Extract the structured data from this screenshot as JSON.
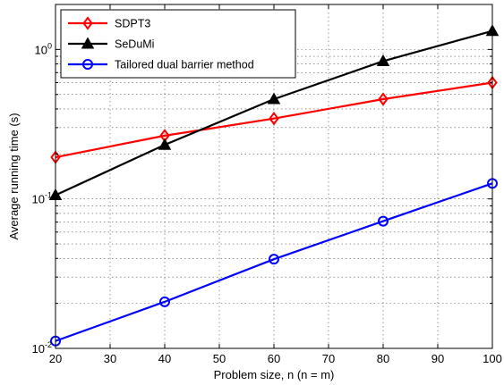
{
  "chart_data": {
    "type": "line",
    "title": "",
    "xlabel": "Problem size, n (n = m)",
    "ylabel": "Average running time (s)",
    "xlim": [
      20,
      100
    ],
    "ylim": [
      0.01,
      2
    ],
    "yscale": "log",
    "grid": true,
    "legend_position": "top-left",
    "x": [
      20,
      40,
      60,
      80,
      100
    ],
    "x_ticks": [
      "20",
      "30",
      "40",
      "50",
      "60",
      "70",
      "80",
      "90",
      "100"
    ],
    "y_ticks": [
      {
        "value": 1,
        "base": "10",
        "exp": "0"
      },
      {
        "value": 0.1,
        "base": "10",
        "exp": "-1"
      },
      {
        "value": 0.01,
        "base": "10",
        "exp": "-2"
      }
    ],
    "series": [
      {
        "name": "SDPT3",
        "color": "#ff0000",
        "marker": "diamond",
        "values": [
          0.19,
          0.265,
          0.345,
          0.465,
          0.6
        ]
      },
      {
        "name": "SeDuMi",
        "color": "#000000",
        "marker": "triangle",
        "values": [
          0.106,
          0.23,
          0.465,
          0.835,
          1.33
        ]
      },
      {
        "name": "Tailored dual barrier method",
        "color": "#0000ff",
        "marker": "circle",
        "values": [
          0.0112,
          0.0205,
          0.0395,
          0.071,
          0.127
        ]
      }
    ]
  }
}
